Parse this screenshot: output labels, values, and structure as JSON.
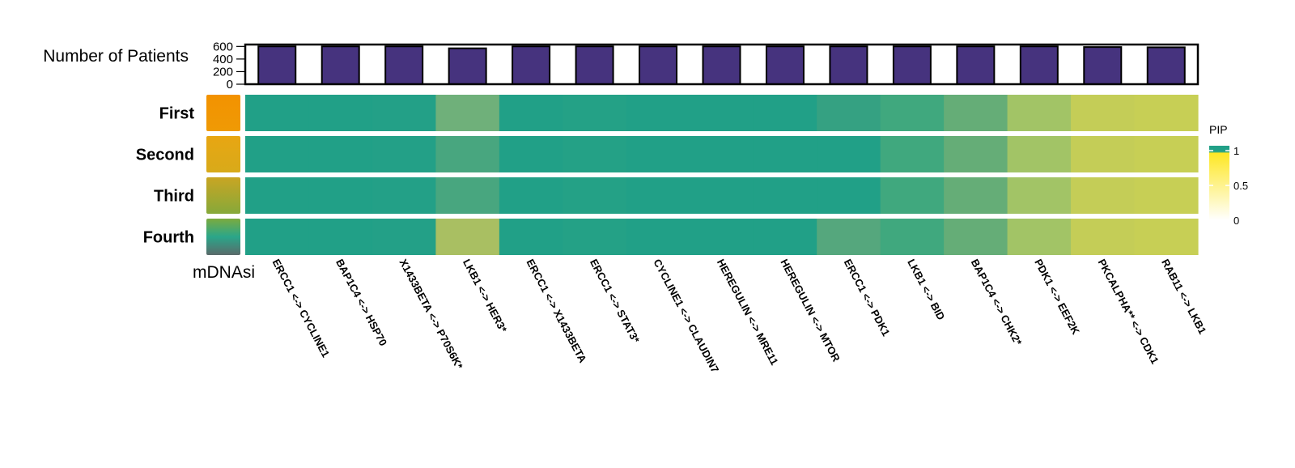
{
  "chart_data": {
    "type": "heatmap",
    "top_bar": {
      "ylabel": "Number of Patients",
      "yticks": [
        0,
        200,
        400,
        600
      ],
      "ylim": [
        0,
        630
      ],
      "bar_color": "#46337e"
    },
    "row_annotation_label": "mDNAsi",
    "rows": [
      "First",
      "Second",
      "Third",
      "Fourth"
    ],
    "row_colors": [
      [
        "#f39200",
        "#ef9a05"
      ],
      [
        "#e8a612",
        "#d8aa1a"
      ],
      [
        "#c9a523",
        "#86a93a"
      ],
      [
        "#7bab3f",
        "#2aa68a",
        "#5a6a6a"
      ]
    ],
    "columns": [
      {
        "label": "ERCC1 <-> CYCLINE1",
        "patients": 601
      },
      {
        "label": "BAP1C4 <-> HSP70",
        "patients": 601
      },
      {
        "label": "X1433BETA <-> P70S6K*",
        "patients": 601
      },
      {
        "label": "LKB1 <-> HER3*",
        "patients": 570
      },
      {
        "label": "ERCC1 <-> X1433BETA",
        "patients": 601
      },
      {
        "label": "ERCC1 <-> STAT3*",
        "patients": 601
      },
      {
        "label": "CYCLINE1 <-> CLAUDIN7",
        "patients": 601
      },
      {
        "label": "HEREGULIN <-> MRE11",
        "patients": 601
      },
      {
        "label": "HEREGULIN <-> MTOR",
        "patients": 601
      },
      {
        "label": "ERCC1 <-> PDK1",
        "patients": 601
      },
      {
        "label": "LKB1 <-> BID",
        "patients": 601
      },
      {
        "label": "BAP1C4 <-> CHK2*",
        "patients": 601
      },
      {
        "label": "PDK1 <-> EEF2K",
        "patients": 601
      },
      {
        "label": "PKCALPHA** <-> CDK1",
        "patients": 590
      },
      {
        "label": "RAB11 <-> LKB1",
        "patients": 586
      }
    ],
    "cell_colors": [
      [
        "#21a087",
        "#21a087",
        "#23a087",
        "#6fb07a",
        "#21a087",
        "#24a186",
        "#21a087",
        "#21a087",
        "#21a087",
        "#35a182",
        "#40a87e",
        "#65ad77",
        "#a2c466",
        "#c4cd57",
        "#c7cf55"
      ],
      [
        "#21a087",
        "#21a087",
        "#23a087",
        "#48a67f",
        "#21a087",
        "#24a186",
        "#21a087",
        "#21a087",
        "#21a087",
        "#21a087",
        "#40a87e",
        "#65ad77",
        "#a2c466",
        "#c4cd57",
        "#c7cf55"
      ],
      [
        "#21a087",
        "#21a087",
        "#23a087",
        "#48a67f",
        "#21a087",
        "#24a186",
        "#21a087",
        "#21a087",
        "#21a087",
        "#21a087",
        "#40a87e",
        "#65ad77",
        "#a2c466",
        "#c4cd57",
        "#c7cf55"
      ],
      [
        "#21a087",
        "#21a087",
        "#23a087",
        "#a9bf62",
        "#21a087",
        "#24a186",
        "#21a087",
        "#21a087",
        "#21a087",
        "#55a77d",
        "#40a87e",
        "#65ad77",
        "#a2c466",
        "#c4cd57",
        "#c7cf55"
      ]
    ],
    "legend": {
      "title": "PIP",
      "ticks": [
        "1",
        "0.5",
        "0"
      ],
      "tick_values": [
        1,
        0.5,
        0
      ],
      "colors": [
        "#21a087",
        "#fde725",
        "#ffffff"
      ]
    }
  }
}
